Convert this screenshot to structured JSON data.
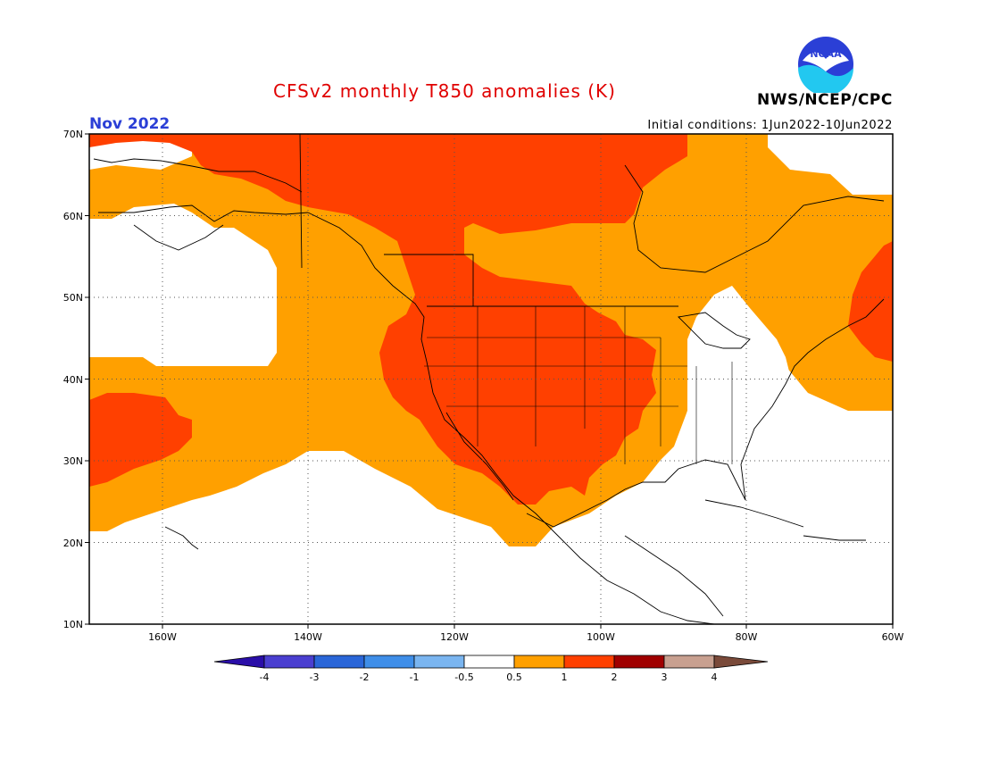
{
  "title": "CFSv2 monthly T850 anomalies (K)",
  "agency": "NWS/NCEP/CPC",
  "logo_text": "NOAA",
  "period": "Nov 2022",
  "initial_conditions": "Initial conditions: 1Jun2022-10Jun2022",
  "lat_labels": [
    "70N",
    "60N",
    "50N",
    "40N",
    "30N",
    "20N",
    "10N"
  ],
  "lon_labels": [
    "160W",
    "140W",
    "120W",
    "100W",
    "80W",
    "60W"
  ],
  "colorbar": {
    "labels": [
      "-4",
      "-3",
      "-2",
      "-1",
      "-0.5",
      "0.5",
      "1",
      "2",
      "3",
      "4"
    ],
    "colors": [
      "#2a0ea8",
      "#4a3fd0",
      "#2a66d8",
      "#3f8ee8",
      "#7ab5f0",
      "#ffffff",
      "#ffa000",
      "#ff4000",
      "#a00000",
      "#c8a090",
      "#7a4a3a"
    ]
  },
  "colors": {
    "orange": "#ffa000",
    "red": "#ff4000",
    "white": "#ffffff"
  }
}
